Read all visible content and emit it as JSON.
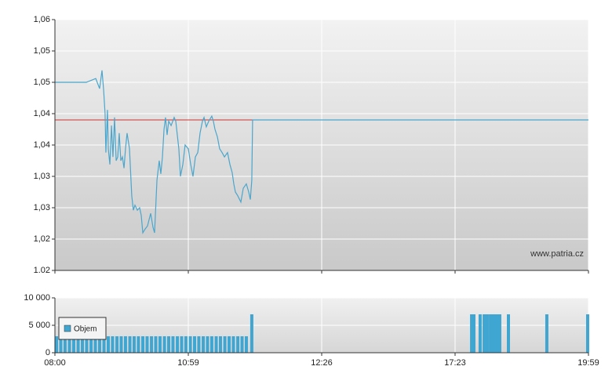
{
  "chart_data": [
    {
      "type": "line",
      "color": "#4aa6cc",
      "grid": true,
      "ylim": [
        1.02,
        1.06
      ],
      "yticks": [
        {
          "value": 1.02,
          "label": "1.02"
        },
        {
          "value": 1.025,
          "label": "1,02"
        },
        {
          "value": 1.03,
          "label": "1,03"
        },
        {
          "value": 1.035,
          "label": "1,03"
        },
        {
          "value": 1.04,
          "label": "1,04"
        },
        {
          "value": 1.045,
          "label": "1,04"
        },
        {
          "value": 1.05,
          "label": "1,05"
        },
        {
          "value": 1.055,
          "label": "1,05"
        },
        {
          "value": 1.06,
          "label": "1,06"
        }
      ],
      "xlim": [
        0,
        4
      ],
      "xticks": [
        0,
        1,
        2,
        3,
        4
      ],
      "reference": {
        "value": 1.044,
        "color": "#cc3333",
        "x": [
          0,
          1.482
        ]
      },
      "watermark": "www.patria.cz",
      "x": [
        0,
        0.235,
        0.306,
        0.335,
        0.353,
        0.365,
        0.376,
        0.382,
        0.394,
        0.4,
        0.412,
        0.424,
        0.435,
        0.447,
        0.459,
        0.471,
        0.482,
        0.494,
        0.506,
        0.518,
        0.529,
        0.541,
        0.559,
        0.576,
        0.588,
        0.6,
        0.618,
        0.635,
        0.647,
        0.659,
        0.676,
        0.694,
        0.706,
        0.718,
        0.735,
        0.747,
        0.765,
        0.782,
        0.794,
        0.806,
        0.818,
        0.829,
        0.841,
        0.853,
        0.871,
        0.894,
        0.906,
        0.929,
        0.941,
        0.959,
        0.976,
        1,
        1.018,
        1.035,
        1.053,
        1.071,
        1.088,
        1.106,
        1.118,
        1.135,
        1.153,
        1.176,
        1.188,
        1.2,
        1.218,
        1.235,
        1.253,
        1.271,
        1.294,
        1.312,
        1.329,
        1.341,
        1.353,
        1.371,
        1.394,
        1.412,
        1.435,
        1.453,
        1.465,
        1.476,
        1.482,
        4
      ],
      "values": [
        1.05,
        1.05,
        1.0506,
        1.049,
        1.0519,
        1.0488,
        1.045,
        1.0388,
        1.0456,
        1.0394,
        1.0369,
        1.0431,
        1.0381,
        1.0444,
        1.0375,
        1.0381,
        1.0419,
        1.0375,
        1.0381,
        1.0363,
        1.0394,
        1.0419,
        1.0394,
        1.0319,
        1.0296,
        1.0304,
        1.0296,
        1.03,
        1.0288,
        1.026,
        1.0266,
        1.0271,
        1.0281,
        1.0291,
        1.0269,
        1.026,
        1.0344,
        1.0375,
        1.0354,
        1.0381,
        1.0425,
        1.0444,
        1.0416,
        1.0438,
        1.0431,
        1.0444,
        1.0438,
        1.0394,
        1.035,
        1.0369,
        1.04,
        1.0394,
        1.0369,
        1.035,
        1.0381,
        1.0388,
        1.0419,
        1.0438,
        1.0444,
        1.0429,
        1.0438,
        1.0446,
        1.0438,
        1.0425,
        1.0413,
        1.0394,
        1.0388,
        1.0381,
        1.0388,
        1.0369,
        1.0356,
        1.0338,
        1.0325,
        1.0319,
        1.0309,
        1.0331,
        1.0338,
        1.0325,
        1.0313,
        1.0344,
        1.044,
        1.044
      ]
    },
    {
      "type": "bar",
      "color": "#3fa6d2",
      "grid": true,
      "ylim": [
        0,
        10000
      ],
      "yticks": [
        0,
        {
          "value": 5000,
          "label": "5 000"
        },
        {
          "value": 10000,
          "label": "10 000"
        }
      ],
      "xlim": [
        0,
        4
      ],
      "xticks": [
        {
          "value": 0,
          "label": "08:00"
        },
        {
          "value": 1,
          "label": "10:59"
        },
        {
          "value": 2,
          "label": "12:26"
        },
        {
          "value": 3,
          "label": "17:23"
        },
        {
          "value": 4,
          "label": "19:59"
        }
      ],
      "legend": "Objem",
      "x": [
        0.012,
        0.044,
        0.076,
        0.109,
        0.141,
        0.174,
        0.206,
        0.238,
        0.271,
        0.303,
        0.335,
        0.368,
        0.4,
        0.432,
        0.465,
        0.497,
        0.529,
        0.562,
        0.594,
        0.626,
        0.659,
        0.691,
        0.724,
        0.756,
        0.788,
        0.821,
        0.853,
        0.885,
        0.918,
        0.95,
        0.982,
        1.015,
        1.047,
        1.079,
        1.112,
        1.144,
        1.176,
        1.209,
        1.241,
        1.274,
        1.306,
        1.338,
        1.371,
        1.403,
        1.435,
        1.476,
        3.124,
        3.141,
        3.188,
        3.218,
        3.241,
        3.265,
        3.288,
        3.306,
        3.324,
        3.335,
        3.4,
        3.688,
        3.994
      ],
      "values": [
        3000,
        3000,
        3000,
        3000,
        3000,
        3000,
        3000,
        3000,
        3000,
        3000,
        3000,
        3000,
        3000,
        3000,
        3000,
        3000,
        3000,
        3000,
        3000,
        3000,
        3000,
        3000,
        3000,
        3000,
        3000,
        3000,
        3000,
        3000,
        3000,
        3000,
        3000,
        3000,
        3000,
        3000,
        3000,
        3000,
        3000,
        3000,
        3000,
        3000,
        3000,
        3000,
        3000,
        3000,
        3000,
        7000,
        7000,
        7000,
        7000,
        7000,
        7000,
        7000,
        7000,
        7000,
        7000,
        7000,
        7000,
        7000,
        7000
      ]
    }
  ]
}
